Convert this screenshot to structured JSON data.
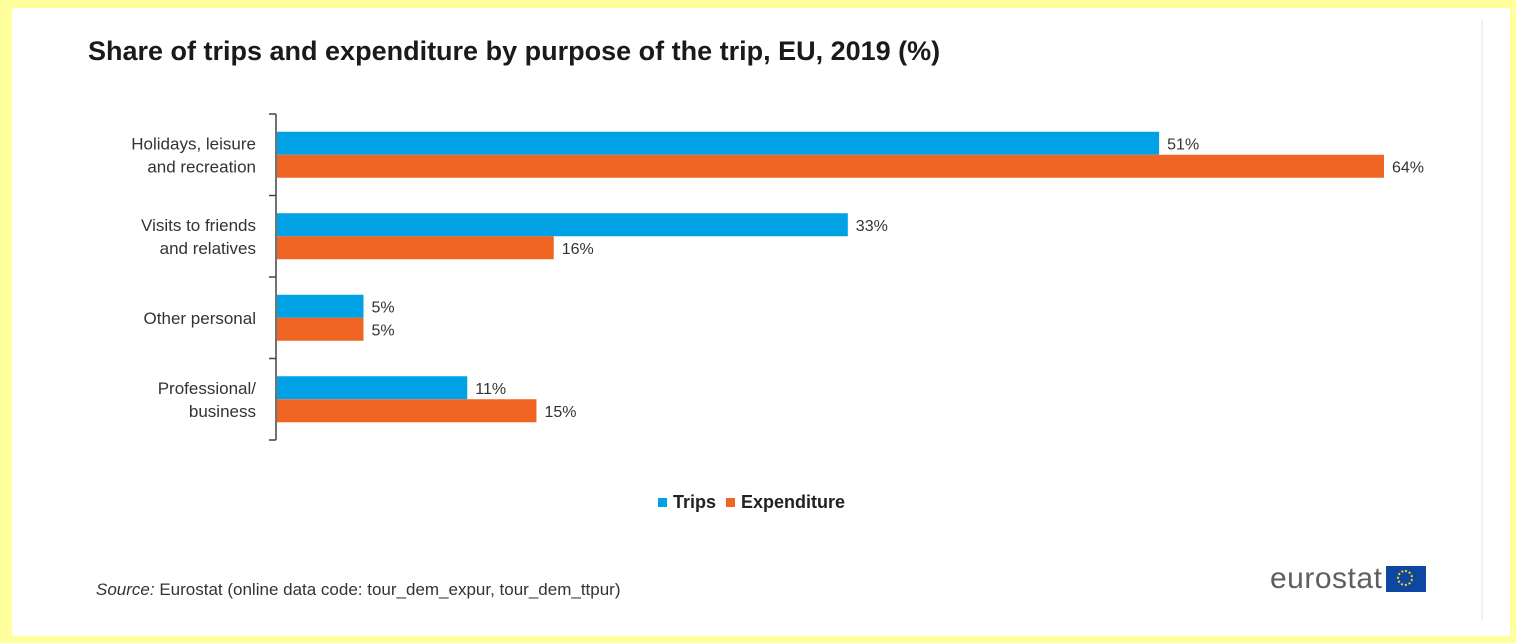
{
  "colors": {
    "trips": "#00a2e5",
    "expenditure": "#f06424",
    "axis": "#444444"
  },
  "chart_data": {
    "type": "bar",
    "orientation": "horizontal",
    "title": "Share of trips and expenditure by purpose of the trip, EU, 2019 (%)",
    "categories": [
      "Holidays, leisure\nand recreation",
      "Visits to friends\nand relatives",
      "Other personal",
      "Professional/\nbusiness"
    ],
    "series": [
      {
        "name": "Trips",
        "values": [
          51,
          33,
          5,
          11
        ],
        "labels": [
          "51%",
          "33%",
          "5%",
          "11%"
        ]
      },
      {
        "name": "Expenditure",
        "values": [
          64,
          16,
          5,
          15
        ],
        "labels": [
          "64%",
          "16%",
          "5%",
          "15%"
        ]
      }
    ],
    "xlim": [
      0,
      64
    ],
    "grid": false,
    "legend": "bottom-center"
  },
  "source": {
    "label": "Source:",
    "text": "Eurostat (online data code: tour_dem_expur, tour_dem_ttpur)"
  },
  "logo": {
    "text": "eurostat",
    "icon": "eu-flag-icon"
  }
}
